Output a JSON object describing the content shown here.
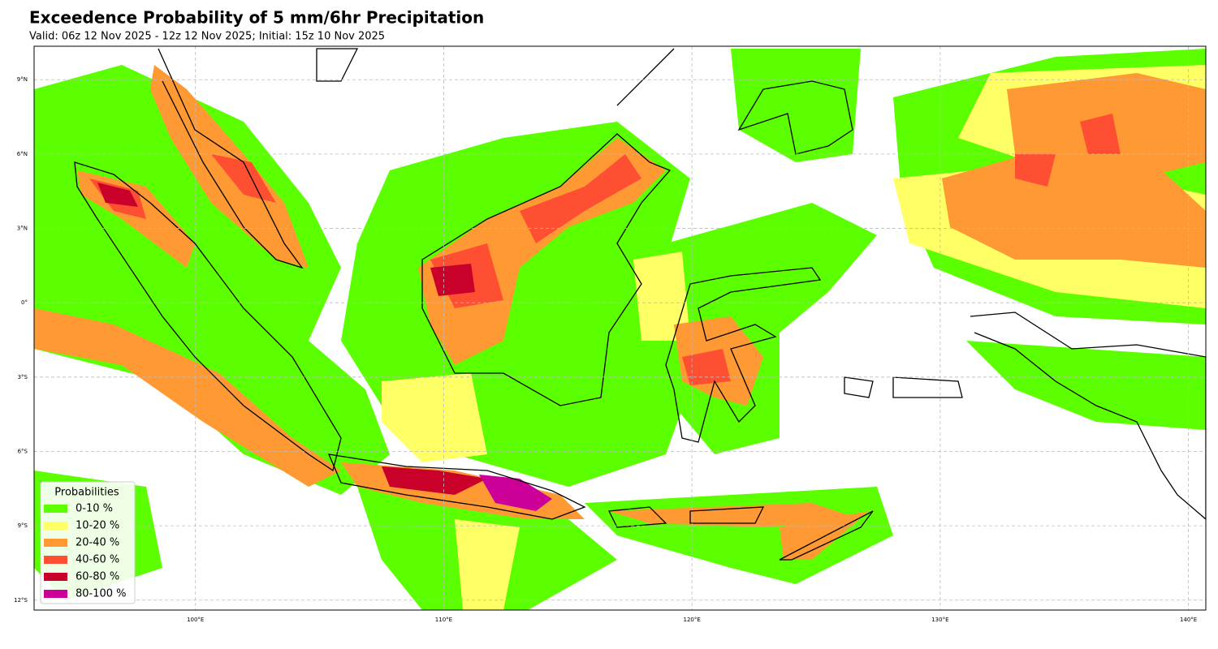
{
  "map": {
    "title": "Exceedence Probability of 5 mm/6hr Precipitation",
    "subtitle": "Valid: 06z 12 Nov 2025 - 12z 12 Nov 2025; Initial: 15z 10 Nov 2025",
    "xlim": [
      93.5,
      140.7
    ],
    "ylim": [
      -12.4,
      10.35
    ],
    "xticks": [
      {
        "value": 100,
        "label": "100°E"
      },
      {
        "value": 110,
        "label": "110°E"
      },
      {
        "value": 120,
        "label": "120°E"
      },
      {
        "value": 130,
        "label": "130°E"
      },
      {
        "value": 140,
        "label": "140°E"
      }
    ],
    "yticks": [
      {
        "value": 9,
        "label": "9°N"
      },
      {
        "value": 6,
        "label": "6°N"
      },
      {
        "value": 3,
        "label": "3°N"
      },
      {
        "value": 0,
        "label": "0°"
      },
      {
        "value": -3,
        "label": "3°S"
      },
      {
        "value": -6,
        "label": "6°S"
      },
      {
        "value": -9,
        "label": "9°S"
      },
      {
        "value": -12,
        "label": "12°S"
      }
    ],
    "grid": true,
    "legend": {
      "title": "Probabilities",
      "entries": [
        {
          "name": "0-10 %",
          "color": "#5cff00"
        },
        {
          "name": "10-20 %",
          "color": "#ffff66"
        },
        {
          "name": "20-40 %",
          "color": "#ff9933"
        },
        {
          "name": "40-60 %",
          "color": "#ff4f33"
        },
        {
          "name": "60-80 %",
          "color": "#c8002a"
        },
        {
          "name": "80-100 %",
          "color": "#cc0099"
        }
      ]
    }
  }
}
